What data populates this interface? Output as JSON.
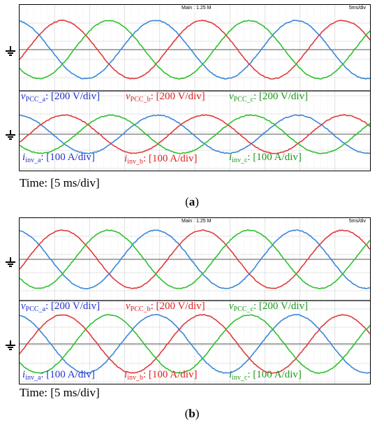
{
  "panels": [
    {
      "header_main": "Main : 1.25 M",
      "header_scale": "5ms/div",
      "labels": {
        "v_a": {
          "var": "v",
          "sub": "PCC_a",
          "scale": ": [200 V/div]"
        },
        "v_b": {
          "var": "v",
          "sub": "PCC_b",
          "scale": ": [200 V/div]"
        },
        "v_c": {
          "var": "v",
          "sub": "PCC_c",
          "scale": ": [200 V/div]"
        },
        "i_a": {
          "var": "i",
          "sub": "inv_a",
          "scale": ": [100 A/div]"
        },
        "i_b": {
          "var": "i",
          "sub": "inv_b",
          "scale": ": [100 A/div]"
        },
        "i_c": {
          "var": "i",
          "sub": "inv_c",
          "scale": ": [100 A/div]"
        }
      },
      "time_label": "Time: [5 ms/div]",
      "caption_open": "(",
      "caption_letter": "a",
      "caption_close": ")"
    },
    {
      "header_main": "Main : 1.25 M",
      "header_scale": "5ms/div",
      "labels": {
        "v_a": {
          "var": "v",
          "sub": "PCC_a",
          "scale": ": [200 V/div]"
        },
        "v_b": {
          "var": "v",
          "sub": "PCC_b",
          "scale": ": [200 V/div]"
        },
        "v_c": {
          "var": "v",
          "sub": "PCC_c",
          "scale": ": [200 V/div]"
        },
        "i_a": {
          "var": "i",
          "sub": "inv_a",
          "scale": ": [100 A/div]"
        },
        "i_b": {
          "var": "i",
          "sub": "inv_b",
          "scale": ": [100 A/div]"
        },
        "i_c": {
          "var": "i",
          "sub": "inv_c",
          "scale": ": [100 A/div]"
        }
      },
      "time_label": "Time: [5 ms/div]",
      "caption_open": "(",
      "caption_letter": "b",
      "caption_close": ")"
    }
  ],
  "colors": {
    "phase_a": "#3a86d8",
    "phase_b": "#e03a3a",
    "phase_c": "#2fc02f",
    "grid": "#cccccc",
    "axis": "#888888"
  },
  "chart_data": [
    {
      "type": "line",
      "title": "",
      "xlabel": "Time: [5 ms/div]",
      "x_divisions": 10,
      "time_per_div_ms": 5,
      "window_ms": [
        0,
        50
      ],
      "frequency_hz": 50,
      "series": [
        {
          "name": "v_PCC_a",
          "group": "voltage",
          "amplitude_div": 1.6,
          "phase_deg": 100
        },
        {
          "name": "v_PCC_b",
          "group": "voltage",
          "amplitude_div": 1.6,
          "phase_deg": -20
        },
        {
          "name": "v_PCC_c",
          "group": "voltage",
          "amplitude_div": 1.6,
          "phase_deg": -140
        },
        {
          "name": "i_inv_a",
          "group": "current",
          "amplitude_div": 1.05,
          "phase_deg": 95
        },
        {
          "name": "i_inv_b",
          "group": "current",
          "amplitude_div": 1.05,
          "phase_deg": -25
        },
        {
          "name": "i_inv_c",
          "group": "current",
          "amplitude_div": 1.05,
          "phase_deg": -145
        }
      ]
    },
    {
      "type": "line",
      "title": "",
      "xlabel": "Time: [5 ms/div]",
      "x_divisions": 10,
      "time_per_div_ms": 5,
      "window_ms": [
        0,
        50
      ],
      "frequency_hz": 50,
      "series": [
        {
          "name": "v_PCC_a",
          "group": "voltage",
          "amplitude_div": 1.6,
          "phase_deg": 100
        },
        {
          "name": "v_PCC_b",
          "group": "voltage",
          "amplitude_div": 1.6,
          "phase_deg": -20
        },
        {
          "name": "v_PCC_c",
          "group": "voltage",
          "amplitude_div": 1.6,
          "phase_deg": -140
        },
        {
          "name": "i_inv_a",
          "group": "current",
          "amplitude_div": 1.6,
          "phase_deg": 100
        },
        {
          "name": "i_inv_b",
          "group": "current",
          "amplitude_div": 1.6,
          "phase_deg": -20
        },
        {
          "name": "i_inv_c",
          "group": "current",
          "amplitude_div": 1.6,
          "phase_deg": -140
        }
      ]
    }
  ]
}
